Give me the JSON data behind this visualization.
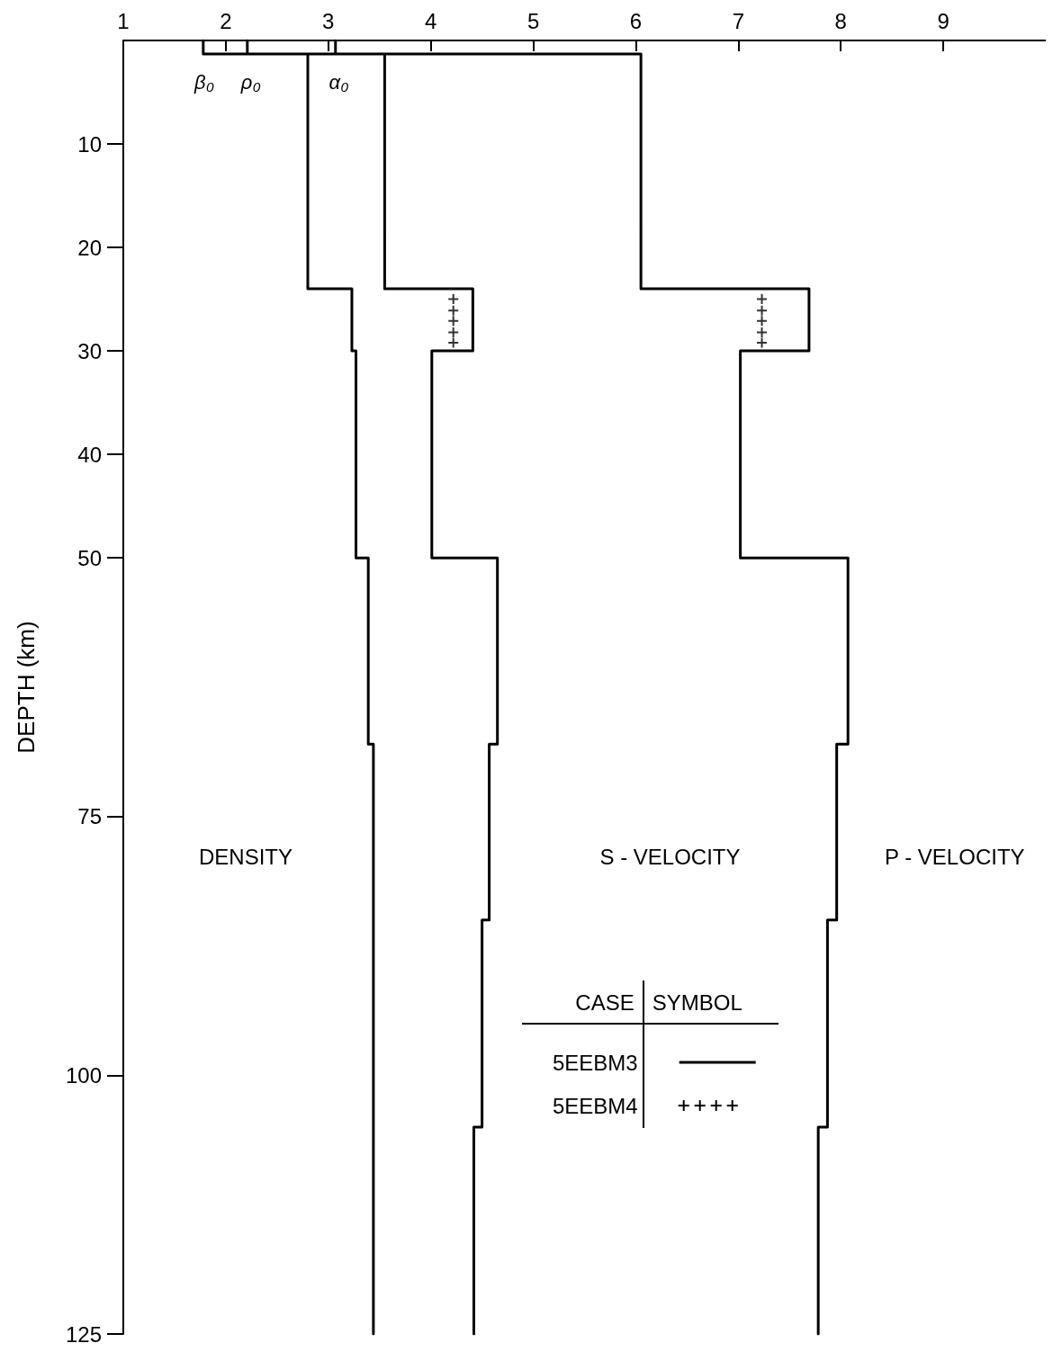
{
  "chart_data": {
    "type": "line",
    "ylabel": "DEPTH (km)",
    "xlim": [
      1,
      10
    ],
    "xticks": [
      1,
      2,
      3,
      4,
      5,
      6,
      7,
      8,
      9
    ],
    "ylim": [
      125,
      0
    ],
    "yticks": [
      10,
      20,
      30,
      40,
      50,
      75,
      100,
      125
    ],
    "grid": false,
    "legend": "bottom",
    "line_style": "solid",
    "series": [
      {
        "name": "5EEBM3",
        "color": "#000000",
        "type": "line",
        "marker": "none",
        "x": [
          2.21,
          2.21,
          2.8,
          2.8,
          3.23,
          3.23,
          3.27,
          3.27,
          3.39,
          3.39,
          3.44,
          3.44,
          null,
          1.78,
          1.78,
          3.55,
          3.55,
          4.41,
          4.41,
          4.01,
          4.01,
          4.65,
          4.65,
          4.57,
          4.57,
          4.5,
          4.5,
          4.42,
          4.42,
          null,
          3.07,
          3.07,
          6.05,
          6.05,
          7.69,
          7.69,
          7.02,
          7.02,
          8.07,
          8.07,
          7.96,
          7.96,
          7.87,
          7.87,
          7.78,
          7.78
        ],
        "values": [
          0,
          1.3,
          1.3,
          24,
          24,
          30,
          30,
          50,
          50,
          68,
          68,
          125,
          null,
          0,
          1.3,
          1.3,
          24,
          24,
          30,
          30,
          50,
          50,
          68,
          68,
          85,
          85,
          105,
          105,
          125,
          null,
          0,
          1.3,
          1.3,
          24,
          24,
          30,
          30,
          50,
          50,
          68,
          68,
          85,
          85,
          105,
          105,
          125
        ]
      },
      {
        "name": "5EEBM4",
        "color": "#000000",
        "type": "scatter",
        "marker": "cross",
        "x": [
          4.22,
          4.22,
          4.22,
          4.22,
          4.22,
          7.23,
          7.23,
          7.23,
          7.23,
          7.23
        ],
        "values": [
          25,
          26.1,
          27.1,
          28.2,
          29.2,
          25,
          26.1,
          27.1,
          28.2,
          29.2
        ]
      }
    ],
    "annotations": [
      "CASE",
      "SYMBOL",
      "β₀",
      "ρ₀",
      "α₀",
      "DENSITY",
      "S - VELOCITY",
      "P - VELOCITY"
    ]
  }
}
